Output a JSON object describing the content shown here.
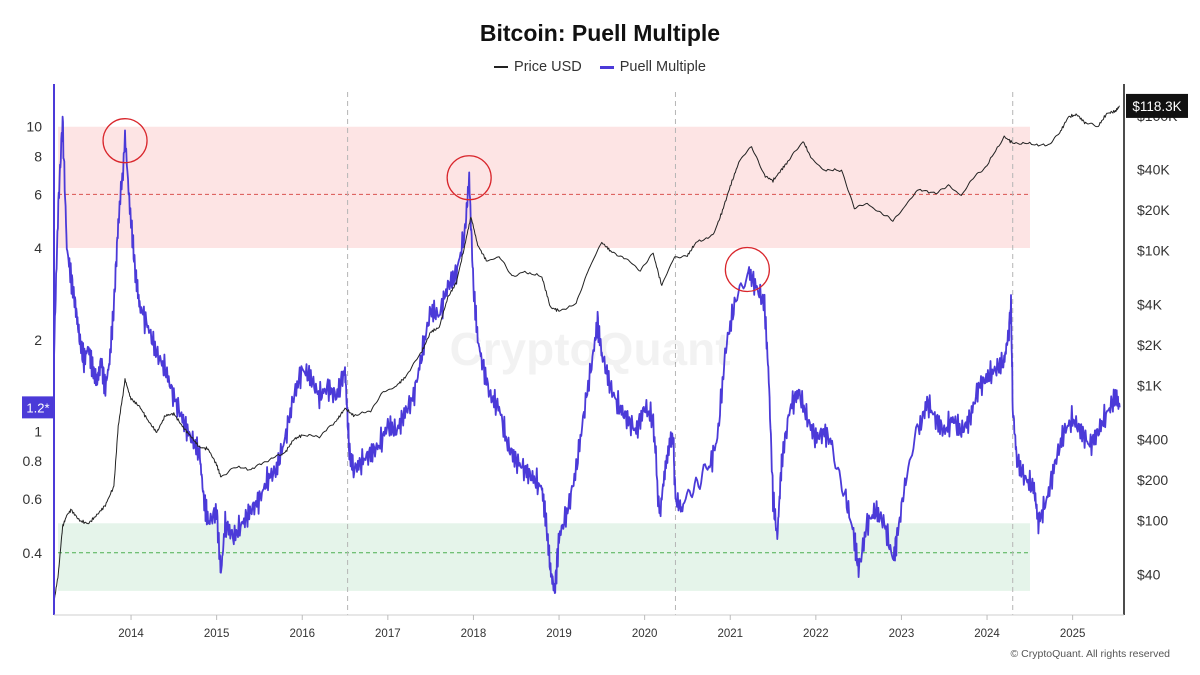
{
  "chart_data": {
    "type": "line",
    "title": "Bitcoin: Puell Multiple",
    "legend": [
      {
        "name": "Price USD",
        "color": "#222222"
      },
      {
        "name": "Puell Multiple",
        "color": "#4b3ad8"
      }
    ],
    "legend_position": "top-center",
    "x_ticks": [
      "2014",
      "2015",
      "2016",
      "2017",
      "2018",
      "2019",
      "2020",
      "2021",
      "2022",
      "2023",
      "2024",
      "2025"
    ],
    "x_range": [
      2013.1,
      2025.6
    ],
    "halving_lines": [
      2016.53,
      2020.36,
      2024.3
    ],
    "left_axis": {
      "scale": "log",
      "range": [
        0.25,
        13
      ],
      "ticks": [
        {
          "value": 10,
          "label": "10"
        },
        {
          "value": 8,
          "label": "8"
        },
        {
          "value": 6,
          "label": "6"
        },
        {
          "value": 4,
          "label": "4"
        },
        {
          "value": 2,
          "label": "2"
        },
        {
          "value": 1,
          "label": "1"
        },
        {
          "value": 0.8,
          "label": "0.8"
        },
        {
          "value": 0.6,
          "label": "0.6"
        },
        {
          "value": 0.4,
          "label": "0.4"
        }
      ],
      "current_marker": {
        "value": 1.2,
        "label": "1.2*"
      }
    },
    "right_axis": {
      "scale": "log",
      "range": [
        20,
        150000
      ],
      "ticks": [
        {
          "value": 100000,
          "label": "$100K"
        },
        {
          "value": 40000,
          "label": "$40K"
        },
        {
          "value": 20000,
          "label": "$20K"
        },
        {
          "value": 10000,
          "label": "$10K"
        },
        {
          "value": 4000,
          "label": "$4K"
        },
        {
          "value": 2000,
          "label": "$2K"
        },
        {
          "value": 1000,
          "label": "$1K"
        },
        {
          "value": 400,
          "label": "$400"
        },
        {
          "value": 200,
          "label": "$200"
        },
        {
          "value": 100,
          "label": "$100"
        },
        {
          "value": 40,
          "label": "$40"
        }
      ],
      "current_marker": {
        "value": 118300,
        "label": "$118.3K"
      }
    },
    "bands": [
      {
        "name": "overheated-zone",
        "from": 4.0,
        "to": 10.0,
        "color": "#fde4e4",
        "midline": 6.0,
        "midline_color": "#d9534f"
      },
      {
        "name": "undervalued-zone",
        "from": 0.3,
        "to": 0.5,
        "color": "#e5f4ea",
        "midline": 0.4,
        "midline_color": "#4caf50"
      }
    ],
    "annotations": [
      {
        "type": "circle",
        "x": 2013.93,
        "value": 9.0
      },
      {
        "type": "circle",
        "x": 2017.95,
        "value": 6.8
      },
      {
        "type": "circle",
        "x": 2021.2,
        "value": 3.4
      }
    ],
    "series": [
      {
        "name": "Puell Multiple",
        "axis": "left",
        "color": "#4b3ad8",
        "points": [
          [
            2013.1,
            1.8
          ],
          [
            2013.15,
            5.5
          ],
          [
            2013.2,
            10.5
          ],
          [
            2013.25,
            4.0
          ],
          [
            2013.3,
            3.2
          ],
          [
            2013.35,
            2.6
          ],
          [
            2013.4,
            2.0
          ],
          [
            2013.45,
            1.7
          ],
          [
            2013.5,
            1.9
          ],
          [
            2013.55,
            1.6
          ],
          [
            2013.6,
            1.45
          ],
          [
            2013.65,
            1.7
          ],
          [
            2013.7,
            1.4
          ],
          [
            2013.75,
            1.7
          ],
          [
            2013.8,
            2.6
          ],
          [
            2013.85,
            4.8
          ],
          [
            2013.93,
            8.8
          ],
          [
            2014.0,
            5.0
          ],
          [
            2014.05,
            3.3
          ],
          [
            2014.1,
            2.6
          ],
          [
            2014.2,
            2.2
          ],
          [
            2014.3,
            1.8
          ],
          [
            2014.4,
            1.6
          ],
          [
            2014.5,
            1.3
          ],
          [
            2014.6,
            1.1
          ],
          [
            2014.7,
            0.95
          ],
          [
            2014.8,
            0.85
          ],
          [
            2014.85,
            0.6
          ],
          [
            2014.9,
            0.5
          ],
          [
            2015.0,
            0.55
          ],
          [
            2015.05,
            0.34
          ],
          [
            2015.1,
            0.5
          ],
          [
            2015.2,
            0.45
          ],
          [
            2015.3,
            0.5
          ],
          [
            2015.4,
            0.55
          ],
          [
            2015.5,
            0.6
          ],
          [
            2015.6,
            0.7
          ],
          [
            2015.7,
            0.75
          ],
          [
            2015.8,
            0.95
          ],
          [
            2015.9,
            1.3
          ],
          [
            2016.0,
            1.6
          ],
          [
            2016.1,
            1.5
          ],
          [
            2016.2,
            1.3
          ],
          [
            2016.3,
            1.4
          ],
          [
            2016.4,
            1.3
          ],
          [
            2016.5,
            1.6
          ],
          [
            2016.53,
            1.1
          ],
          [
            2016.55,
            0.85
          ],
          [
            2016.6,
            0.75
          ],
          [
            2016.7,
            0.8
          ],
          [
            2016.8,
            0.85
          ],
          [
            2016.9,
            0.9
          ],
          [
            2017.0,
            1.05
          ],
          [
            2017.1,
            1.0
          ],
          [
            2017.2,
            1.15
          ],
          [
            2017.3,
            1.3
          ],
          [
            2017.4,
            1.8
          ],
          [
            2017.5,
            2.5
          ],
          [
            2017.6,
            2.4
          ],
          [
            2017.7,
            3.0
          ],
          [
            2017.8,
            3.3
          ],
          [
            2017.9,
            4.5
          ],
          [
            2017.95,
            6.8
          ],
          [
            2018.0,
            3.0
          ],
          [
            2018.05,
            2.0
          ],
          [
            2018.1,
            1.7
          ],
          [
            2018.2,
            1.3
          ],
          [
            2018.3,
            1.2
          ],
          [
            2018.4,
            0.9
          ],
          [
            2018.5,
            0.8
          ],
          [
            2018.6,
            0.75
          ],
          [
            2018.7,
            0.7
          ],
          [
            2018.8,
            0.65
          ],
          [
            2018.85,
            0.5
          ],
          [
            2018.9,
            0.35
          ],
          [
            2018.95,
            0.3
          ],
          [
            2019.0,
            0.45
          ],
          [
            2019.1,
            0.55
          ],
          [
            2019.2,
            0.75
          ],
          [
            2019.3,
            1.2
          ],
          [
            2019.4,
            1.8
          ],
          [
            2019.45,
            2.3
          ],
          [
            2019.5,
            1.8
          ],
          [
            2019.6,
            1.4
          ],
          [
            2019.7,
            1.2
          ],
          [
            2019.8,
            1.1
          ],
          [
            2019.9,
            1.0
          ],
          [
            2020.0,
            1.2
          ],
          [
            2020.1,
            1.1
          ],
          [
            2020.18,
            0.5
          ],
          [
            2020.25,
            0.8
          ],
          [
            2020.33,
            1.0
          ],
          [
            2020.36,
            0.6
          ],
          [
            2020.45,
            0.55
          ],
          [
            2020.6,
            0.7
          ],
          [
            2020.75,
            0.75
          ],
          [
            2020.85,
            0.95
          ],
          [
            2020.95,
            1.9
          ],
          [
            2021.05,
            2.6
          ],
          [
            2021.2,
            3.4
          ],
          [
            2021.3,
            3.0
          ],
          [
            2021.4,
            2.6
          ],
          [
            2021.45,
            1.5
          ],
          [
            2021.5,
            0.6
          ],
          [
            2021.55,
            0.45
          ],
          [
            2021.6,
            0.8
          ],
          [
            2021.7,
            1.2
          ],
          [
            2021.8,
            1.35
          ],
          [
            2021.9,
            1.1
          ],
          [
            2022.0,
            0.95
          ],
          [
            2022.1,
            1.0
          ],
          [
            2022.2,
            0.9
          ],
          [
            2022.35,
            0.6
          ],
          [
            2022.45,
            0.45
          ],
          [
            2022.5,
            0.35
          ],
          [
            2022.6,
            0.5
          ],
          [
            2022.7,
            0.55
          ],
          [
            2022.8,
            0.5
          ],
          [
            2022.9,
            0.38
          ],
          [
            2022.95,
            0.45
          ],
          [
            2023.05,
            0.7
          ],
          [
            2023.2,
            1.0
          ],
          [
            2023.3,
            1.25
          ],
          [
            2023.4,
            1.1
          ],
          [
            2023.5,
            1.0
          ],
          [
            2023.6,
            1.1
          ],
          [
            2023.7,
            1.0
          ],
          [
            2023.8,
            1.1
          ],
          [
            2023.9,
            1.4
          ],
          [
            2024.0,
            1.5
          ],
          [
            2024.1,
            1.6
          ],
          [
            2024.2,
            1.7
          ],
          [
            2024.25,
            2.1
          ],
          [
            2024.28,
            2.6
          ],
          [
            2024.3,
            1.2
          ],
          [
            2024.35,
            0.8
          ],
          [
            2024.45,
            0.7
          ],
          [
            2024.55,
            0.65
          ],
          [
            2024.6,
            0.5
          ],
          [
            2024.7,
            0.6
          ],
          [
            2024.8,
            0.8
          ],
          [
            2024.9,
            1.0
          ],
          [
            2025.0,
            1.1
          ],
          [
            2025.1,
            1.0
          ],
          [
            2025.2,
            0.9
          ],
          [
            2025.3,
            1.0
          ],
          [
            2025.4,
            1.15
          ],
          [
            2025.5,
            1.3
          ],
          [
            2025.55,
            1.2
          ]
        ]
      },
      {
        "name": "Price USD",
        "axis": "right",
        "color": "#222222",
        "points": [
          [
            2013.1,
            25
          ],
          [
            2013.15,
            40
          ],
          [
            2013.2,
            90
          ],
          [
            2013.25,
            110
          ],
          [
            2013.3,
            120
          ],
          [
            2013.4,
            100
          ],
          [
            2013.5,
            95
          ],
          [
            2013.6,
            110
          ],
          [
            2013.7,
            130
          ],
          [
            2013.8,
            180
          ],
          [
            2013.85,
            500
          ],
          [
            2013.93,
            1100
          ],
          [
            2014.0,
            800
          ],
          [
            2014.1,
            700
          ],
          [
            2014.2,
            550
          ],
          [
            2014.3,
            450
          ],
          [
            2014.4,
            600
          ],
          [
            2014.5,
            620
          ],
          [
            2014.6,
            500
          ],
          [
            2014.7,
            420
          ],
          [
            2014.8,
            350
          ],
          [
            2014.9,
            340
          ],
          [
            2015.0,
            260
          ],
          [
            2015.05,
            210
          ],
          [
            2015.2,
            250
          ],
          [
            2015.4,
            240
          ],
          [
            2015.6,
            280
          ],
          [
            2015.8,
            320
          ],
          [
            2015.9,
            400
          ],
          [
            2016.0,
            430
          ],
          [
            2016.2,
            420
          ],
          [
            2016.4,
            550
          ],
          [
            2016.5,
            680
          ],
          [
            2016.6,
            600
          ],
          [
            2016.8,
            650
          ],
          [
            2016.95,
            900
          ],
          [
            2017.1,
            1000
          ],
          [
            2017.2,
            1150
          ],
          [
            2017.4,
            1800
          ],
          [
            2017.5,
            2500
          ],
          [
            2017.6,
            2700
          ],
          [
            2017.7,
            4500
          ],
          [
            2017.8,
            5800
          ],
          [
            2017.9,
            11000
          ],
          [
            2017.97,
            18000
          ],
          [
            2018.05,
            11000
          ],
          [
            2018.15,
            8500
          ],
          [
            2018.3,
            9000
          ],
          [
            2018.45,
            6500
          ],
          [
            2018.6,
            7000
          ],
          [
            2018.8,
            6400
          ],
          [
            2018.9,
            3800
          ],
          [
            2019.0,
            3600
          ],
          [
            2019.2,
            4000
          ],
          [
            2019.35,
            7500
          ],
          [
            2019.5,
            11500
          ],
          [
            2019.6,
            10000
          ],
          [
            2019.8,
            8500
          ],
          [
            2019.95,
            7200
          ],
          [
            2020.1,
            9500
          ],
          [
            2020.2,
            5500
          ],
          [
            2020.35,
            9000
          ],
          [
            2020.5,
            9200
          ],
          [
            2020.6,
            11500
          ],
          [
            2020.8,
            13000
          ],
          [
            2020.9,
            19000
          ],
          [
            2021.0,
            30000
          ],
          [
            2021.1,
            45000
          ],
          [
            2021.25,
            60000
          ],
          [
            2021.4,
            36000
          ],
          [
            2021.5,
            33000
          ],
          [
            2021.6,
            40000
          ],
          [
            2021.7,
            48000
          ],
          [
            2021.85,
            65000
          ],
          [
            2021.95,
            48000
          ],
          [
            2022.1,
            40000
          ],
          [
            2022.3,
            39000
          ],
          [
            2022.45,
            21000
          ],
          [
            2022.6,
            22000
          ],
          [
            2022.75,
            19500
          ],
          [
            2022.9,
            16500
          ],
          [
            2023.05,
            22000
          ],
          [
            2023.2,
            28000
          ],
          [
            2023.4,
            27000
          ],
          [
            2023.55,
            30000
          ],
          [
            2023.7,
            26000
          ],
          [
            2023.85,
            35000
          ],
          [
            2024.0,
            43000
          ],
          [
            2024.2,
            70000
          ],
          [
            2024.3,
            63000
          ],
          [
            2024.5,
            62000
          ],
          [
            2024.7,
            60000
          ],
          [
            2024.85,
            75000
          ],
          [
            2024.95,
            98000
          ],
          [
            2025.05,
            102000
          ],
          [
            2025.15,
            88000
          ],
          [
            2025.3,
            84000
          ],
          [
            2025.4,
            104000
          ],
          [
            2025.5,
            108000
          ],
          [
            2025.55,
            118300
          ]
        ]
      }
    ]
  },
  "watermark": "CryptoQuant",
  "footer": "© CryptoQuant. All rights reserved"
}
